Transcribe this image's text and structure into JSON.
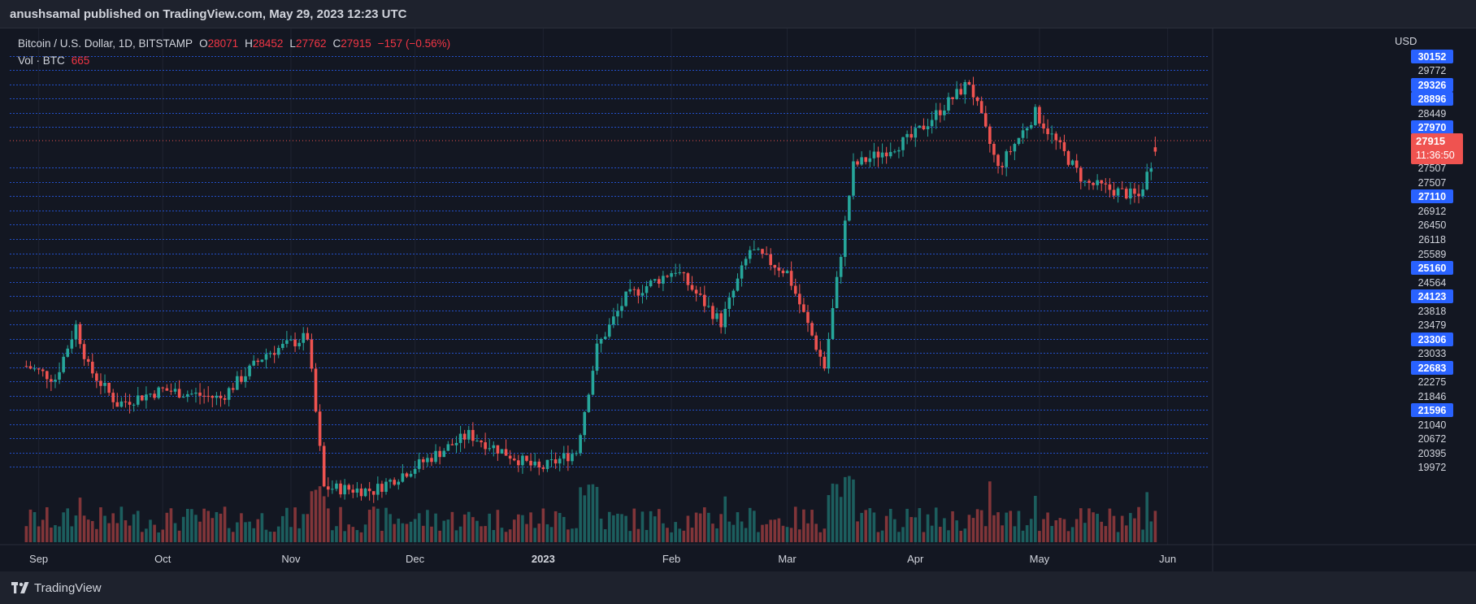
{
  "header": {
    "publisher_line": "anushsamal published on TradingView.com, May 29, 2023 12:23 UTC"
  },
  "legend": {
    "symbol": "Bitcoin / U.S. Dollar, 1D, BITSTAMP",
    "o_label": "O",
    "o_value": "28071",
    "h_label": "H",
    "h_value": "28452",
    "l_label": "L",
    "l_value": "27762",
    "c_label": "C",
    "c_value": "27915",
    "change": "−157 (−0.56%)",
    "vol_label": "Vol · BTC",
    "vol_value": "665"
  },
  "price_scale": {
    "currency": "USD",
    "current_price": "27915",
    "countdown": "11:36:50"
  },
  "footer": {
    "brand": "TradingView"
  },
  "colors": {
    "up": "#26a69a",
    "down": "#ef5350",
    "level_line": "#2962ff",
    "label_bg": "#2962ff"
  },
  "chart_data": {
    "type": "candlestick",
    "symbol": "BTCUSD",
    "timeframe": "1D",
    "x_axis_labels": [
      "Sep",
      "Oct",
      "Nov",
      "Dec",
      "2023",
      "Feb",
      "Mar",
      "Apr",
      "May",
      "Jun"
    ],
    "price_levels": [
      30152,
      29772,
      29326,
      28896,
      28449,
      27970,
      27507,
      27507,
      27110,
      26912,
      26450,
      26118,
      25589,
      25160,
      24564,
      24123,
      23818,
      23479,
      23306,
      23033,
      22683,
      22275,
      21846,
      21596,
      21040,
      20672,
      20395,
      19972
    ],
    "highlighted_levels": [
      30152,
      29326,
      28896,
      27970,
      27110,
      25160,
      24123,
      23306,
      22683,
      21596
    ],
    "approx_close_path": [
      {
        "date": "2022-08-29",
        "close": 20250
      },
      {
        "date": "2022-09-05",
        "close": 19800
      },
      {
        "date": "2022-09-10",
        "close": 21700
      },
      {
        "date": "2022-09-13",
        "close": 20200
      },
      {
        "date": "2022-09-20",
        "close": 18900
      },
      {
        "date": "2022-10-01",
        "close": 19400
      },
      {
        "date": "2022-10-15",
        "close": 19100
      },
      {
        "date": "2022-10-26",
        "close": 20700
      },
      {
        "date": "2022-11-05",
        "close": 21300
      },
      {
        "date": "2022-11-09",
        "close": 15900
      },
      {
        "date": "2022-11-21",
        "close": 15800
      },
      {
        "date": "2022-12-05",
        "close": 17000
      },
      {
        "date": "2022-12-14",
        "close": 17800
      },
      {
        "date": "2022-12-31",
        "close": 16550
      },
      {
        "date": "2023-01-09",
        "close": 17200
      },
      {
        "date": "2023-01-14",
        "close": 20900
      },
      {
        "date": "2023-01-21",
        "close": 22700
      },
      {
        "date": "2023-02-02",
        "close": 23700
      },
      {
        "date": "2023-02-13",
        "close": 21800
      },
      {
        "date": "2023-02-20",
        "close": 24400
      },
      {
        "date": "2023-03-01",
        "close": 23600
      },
      {
        "date": "2023-03-10",
        "close": 20200
      },
      {
        "date": "2023-03-17",
        "close": 27400
      },
      {
        "date": "2023-03-31",
        "close": 28400
      },
      {
        "date": "2023-04-14",
        "close": 30400
      },
      {
        "date": "2023-04-21",
        "close": 27300
      },
      {
        "date": "2023-04-30",
        "close": 29300
      },
      {
        "date": "2023-05-12",
        "close": 26800
      },
      {
        "date": "2023-05-25",
        "close": 26300
      },
      {
        "date": "2023-05-29",
        "close": 27915
      }
    ],
    "last": {
      "open": 28071,
      "high": 28452,
      "low": 27762,
      "close": 27915
    },
    "volume_last": 665
  }
}
